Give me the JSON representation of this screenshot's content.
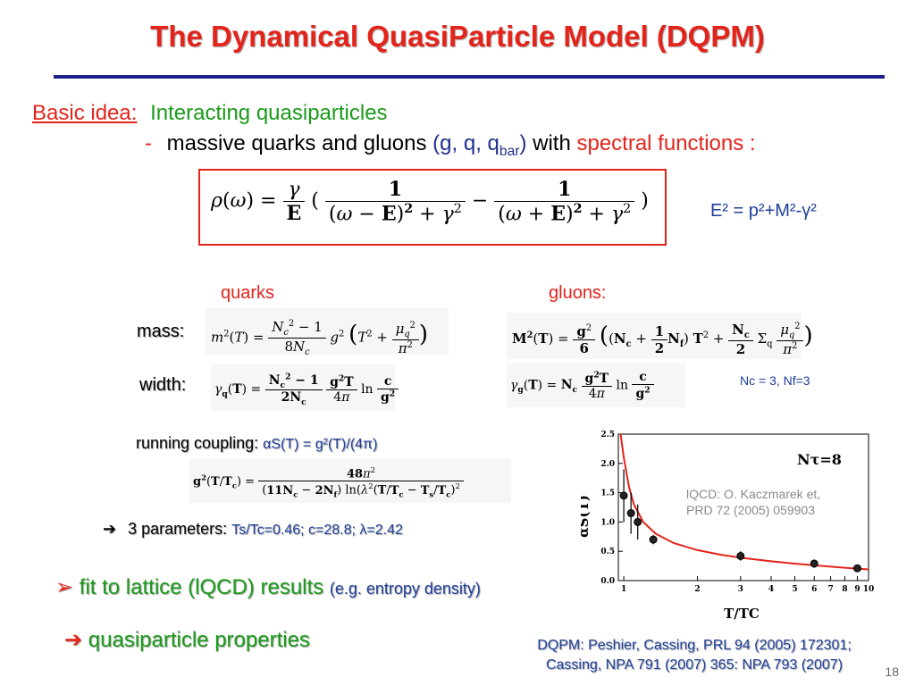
{
  "slide": {
    "title": "The Dynamical QuasiParticle Model (DQPM)",
    "basic_idea_label": "Basic idea:",
    "basic_idea_text": "Interacting quasiparticles",
    "dash": "-",
    "massive_text": "massive quarks and gluons",
    "gq_text": "(g, q, q",
    "gq_sub": "bar",
    "gq_close": ")",
    "with_text": "with",
    "spectral_text": "spectral functions :",
    "energy_rel": "E² = p²+M²-γ²",
    "quarks_label": "quarks",
    "gluons_label": "gluons:",
    "mass_label": "mass:",
    "width_label": "width:",
    "nc_nf": "Nc = 3, Nf=3",
    "running_coupling_label": "running coupling:",
    "running_coupling_formula": "αS(T) = g²(T)/(4π)",
    "params_arrow": "➔",
    "params_label": "3 parameters:",
    "params_values": "Ts/Tc=0.46;  c=28.8;  λ=2.42",
    "fit_label": "fit to lattice (lQCD) results",
    "fit_example": "(e.g. entropy density)",
    "qp_label": "quasiparticle properties",
    "footer_line1": "DQPM: Peshier, Cassing, PRL 94 (2005) 172301;",
    "footer_line2": "Cassing,  NPA 791 (2007) 365: NPA 793 (2007)",
    "page_number": "18"
  },
  "colors": {
    "title": "#e3241b",
    "accent_green": "#1a9a1a",
    "accent_blue": "#1f3f9a",
    "rule": "#1f1f8a",
    "curve": "#e3241b"
  },
  "chart_data": {
    "type": "scatter",
    "xlabel": "T/TC",
    "ylabel": "αS(T)",
    "xscale": "log",
    "xlim": [
      0.95,
      10
    ],
    "ylim": [
      0,
      2.5
    ],
    "xticks": [
      1,
      2,
      3,
      4,
      5,
      6,
      7,
      8,
      9,
      10
    ],
    "yticks": [
      0.0,
      0.5,
      1.0,
      1.5,
      2.0,
      2.5
    ],
    "annotation": "Nτ=8",
    "legend_line1": "lQCD: O. Kaczmarek et,",
    "legend_line2": "PRD 72 (2005) 059903",
    "series": [
      {
        "points": [
          {
            "x": 1.0,
            "y": 1.45,
            "err": 0.45
          },
          {
            "x": 1.07,
            "y": 1.15,
            "err": 0.35
          },
          {
            "x": 1.14,
            "y": 1.0,
            "err": 0.3
          },
          {
            "x": 1.32,
            "y": 0.7,
            "err": 0.08
          },
          {
            "x": 3.0,
            "y": 0.42,
            "err": 0.08
          },
          {
            "x": 6.0,
            "y": 0.29,
            "err": 0.07
          },
          {
            "x": 9.0,
            "y": 0.21,
            "err": 0.03
          }
        ]
      }
    ],
    "fit_curve": [
      {
        "x": 0.97,
        "y": 2.5
      },
      {
        "x": 1.0,
        "y": 2.1
      },
      {
        "x": 1.05,
        "y": 1.6
      },
      {
        "x": 1.1,
        "y": 1.3
      },
      {
        "x": 1.2,
        "y": 1.0
      },
      {
        "x": 1.35,
        "y": 0.8
      },
      {
        "x": 1.6,
        "y": 0.64
      },
      {
        "x": 2.0,
        "y": 0.52
      },
      {
        "x": 2.5,
        "y": 0.44
      },
      {
        "x": 3.0,
        "y": 0.39
      },
      {
        "x": 4.0,
        "y": 0.33
      },
      {
        "x": 5.0,
        "y": 0.29
      },
      {
        "x": 6.0,
        "y": 0.26
      },
      {
        "x": 8.0,
        "y": 0.22
      },
      {
        "x": 10.0,
        "y": 0.19
      }
    ]
  }
}
